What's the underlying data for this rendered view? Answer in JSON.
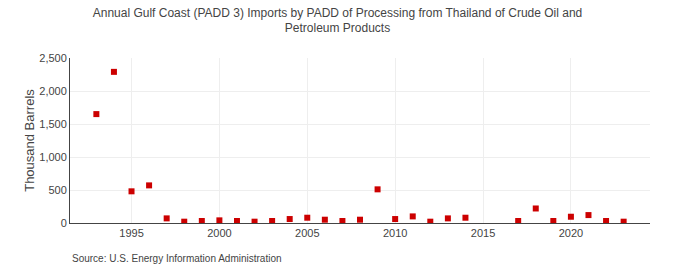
{
  "chart_data": {
    "type": "scatter",
    "title": "Annual Gulf Coast (PADD 3) Imports by PADD of Processing from Thailand of Crude Oil and\nPetroleum Products",
    "ylabel": "Thousand Barrels",
    "annotations": [
      "Source: U.S. Energy Information Administration"
    ],
    "color": "#cc0000",
    "marker": "square",
    "grid": true,
    "xlim": [
      1991.5,
      2024.5
    ],
    "xticks": [
      1995,
      2000,
      2005,
      2010,
      2015,
      2020
    ],
    "ylim": [
      0,
      2500
    ],
    "yticks": [
      0,
      500,
      {
        "value": 1000,
        "label": "1,000"
      },
      {
        "value": 1500,
        "label": "1,500"
      },
      {
        "value": 2000,
        "label": "2,000"
      },
      {
        "value": 2500,
        "label": "2,500"
      }
    ],
    "x": [
      1993,
      1994,
      1995,
      1996,
      1997,
      1998,
      1999,
      2000,
      2001,
      2002,
      2003,
      2004,
      2005,
      2006,
      2007,
      2008,
      2009,
      2010,
      2011,
      2012,
      2013,
      2014,
      2017,
      2018,
      2019,
      2020,
      2021,
      2022,
      2023
    ],
    "values": [
      1650,
      2290,
      480,
      570,
      70,
      20,
      30,
      40,
      30,
      20,
      30,
      60,
      80,
      50,
      30,
      50,
      510,
      60,
      100,
      20,
      70,
      80,
      30,
      220,
      30,
      95,
      120,
      30,
      20
    ]
  }
}
